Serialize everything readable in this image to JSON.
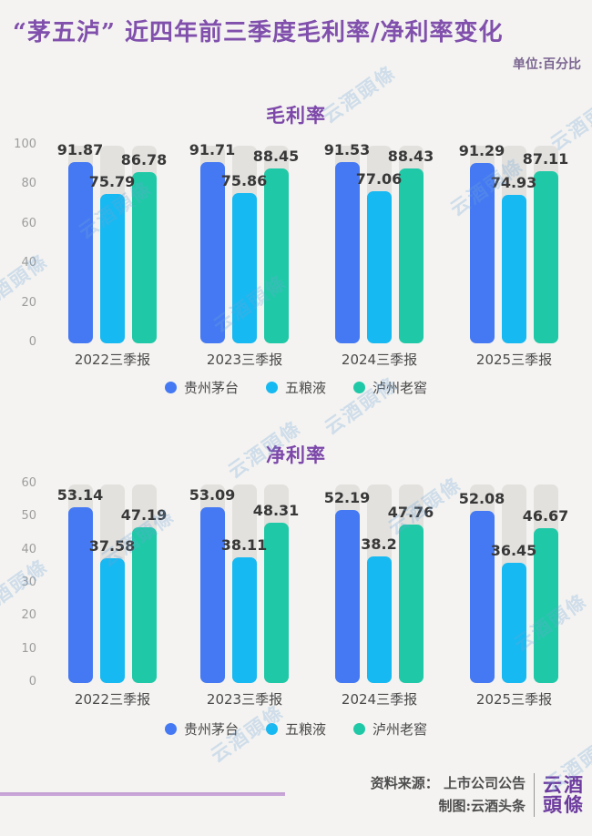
{
  "page": {
    "title": "“茅五泸” 近四年前三季度毛利率/净利率变化",
    "unit_label": "单位:百分比"
  },
  "colors": {
    "series": [
      "#4479f3",
      "#16b9f2",
      "#1fc9a7"
    ],
    "track": "#e2e1de",
    "accent_purple": "#8050ac",
    "background": "#f4f3f1"
  },
  "legend": [
    {
      "label": "贵州茅台",
      "color": "#4479f3"
    },
    {
      "label": "五粮液",
      "color": "#16b9f2"
    },
    {
      "label": "泸州老窖",
      "color": "#1fc9a7"
    }
  ],
  "chart_data": [
    {
      "type": "bar",
      "title": "毛利率",
      "categories": [
        "2022三季报",
        "2023三季报",
        "2024三季报",
        "2025三季报"
      ],
      "series": [
        {
          "name": "贵州茅台",
          "values": [
            91.87,
            91.71,
            91.53,
            91.29
          ]
        },
        {
          "name": "五粮液",
          "values": [
            75.79,
            75.86,
            77.06,
            74.93
          ]
        },
        {
          "name": "泸州老窖",
          "values": [
            86.78,
            88.45,
            88.43,
            87.11
          ]
        }
      ],
      "ylim": [
        0,
        100
      ],
      "yticks": [
        100,
        80,
        60,
        40,
        20,
        0
      ],
      "grid": false,
      "legend_position": "bottom"
    },
    {
      "type": "bar",
      "title": "净利率",
      "categories": [
        "2022三季报",
        "2023三季报",
        "2024三季报",
        "2025三季报"
      ],
      "series": [
        {
          "name": "贵州茅台",
          "values": [
            53.14,
            53.09,
            52.19,
            52.08
          ]
        },
        {
          "name": "五粮液",
          "values": [
            37.58,
            38.11,
            38.2,
            36.45
          ]
        },
        {
          "name": "泸州老窖",
          "values": [
            47.19,
            48.31,
            47.76,
            46.67
          ]
        }
      ],
      "ylim": [
        0,
        60
      ],
      "yticks": [
        60,
        50,
        40,
        30,
        20,
        10,
        0
      ],
      "grid": false,
      "legend_position": "bottom"
    }
  ],
  "footer": {
    "source_label": "资料来源： 上市公司公告",
    "credit_label": "制图:云酒头条",
    "logo_line1": "云酒",
    "logo_line2": "頭條"
  },
  "watermark_text": "云酒頭條"
}
